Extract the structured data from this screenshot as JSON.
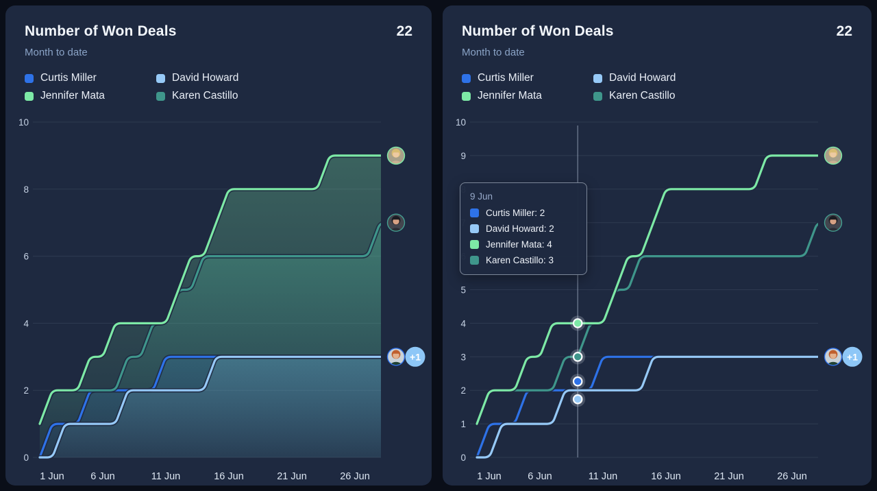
{
  "page": {
    "background": "#0a0e18"
  },
  "cards": [
    {
      "title": "Number of Won Deals",
      "value": "22",
      "subtitle": "Month to date"
    },
    {
      "title": "Number of Won Deals",
      "value": "22",
      "subtitle": "Month to date"
    }
  ],
  "chart_data": [
    {
      "type": "area",
      "title": "Number of Won Deals",
      "subtitle": "Month to date",
      "total": 22,
      "x_ticks": [
        "1 Jun",
        "6 Jun",
        "11 Jun",
        "16 Jun",
        "21 Jun",
        "26 Jun"
      ],
      "x_range_days": [
        1,
        30
      ],
      "ylim": [
        0,
        10
      ],
      "y_tick_step": 2,
      "grid": true,
      "legend_position": "top",
      "series": [
        {
          "name": "Curtis Miller",
          "color": "#2e72e8",
          "fill_opacity_top": 0.2,
          "values": [
            0,
            1,
            1,
            1,
            2,
            2,
            2,
            2,
            2,
            2,
            3,
            3,
            3,
            3,
            3,
            3,
            3,
            3,
            3,
            3,
            3,
            3,
            3,
            3,
            3,
            3,
            3,
            3,
            3,
            3
          ]
        },
        {
          "name": "David Howard",
          "color": "#96c9f7",
          "fill_opacity_top": 0.2,
          "values": [
            0,
            0,
            1,
            1,
            1,
            1,
            1,
            2,
            2,
            2,
            2,
            2,
            2,
            2,
            3,
            3,
            3,
            3,
            3,
            3,
            3,
            3,
            3,
            3,
            3,
            3,
            3,
            3,
            3,
            3
          ]
        },
        {
          "name": "Karen Castillo",
          "color": "#3f968b",
          "fill_opacity_top": 0.42,
          "values": [
            1,
            2,
            2,
            2,
            2,
            2,
            2,
            3,
            3,
            4,
            4,
            5,
            5,
            6,
            6,
            6,
            6,
            6,
            6,
            6,
            6,
            6,
            6,
            6,
            6,
            6,
            6,
            7,
            7,
            7
          ]
        },
        {
          "name": "Jennifer Mata",
          "color": "#7de9a6",
          "fill_opacity_top": 0.3,
          "values": [
            1,
            2,
            2,
            2,
            3,
            3,
            4,
            4,
            4,
            4,
            4,
            5,
            6,
            6,
            7,
            8,
            8,
            8,
            8,
            8,
            8,
            8,
            8,
            9,
            9,
            9,
            9,
            9,
            9,
            9
          ]
        }
      ],
      "end_avatars": [
        {
          "name": "Jennifer Mata",
          "ring": "#7de9a6",
          "value": 9
        },
        {
          "name": "Karen Castillo",
          "ring": "#44a092",
          "value": 7
        },
        {
          "name": "Curtis Miller",
          "ring": "#2e6fe8",
          "value": 3,
          "badge": "+1"
        }
      ]
    },
    {
      "type": "line",
      "title": "Number of Won Deals",
      "subtitle": "Month to date",
      "total": 22,
      "x_ticks": [
        "1 Jun",
        "6 Jun",
        "11 Jun",
        "16 Jun",
        "21 Jun",
        "26 Jun"
      ],
      "x_range_days": [
        1,
        30
      ],
      "ylim": [
        0,
        10
      ],
      "y_tick_step": 1,
      "grid": true,
      "legend_position": "top",
      "series": [
        {
          "name": "Curtis Miller",
          "color": "#2e72e8",
          "values": [
            0,
            1,
            1,
            1,
            2,
            2,
            2,
            2,
            2,
            2,
            3,
            3,
            3,
            3,
            3,
            3,
            3,
            3,
            3,
            3,
            3,
            3,
            3,
            3,
            3,
            3,
            3,
            3,
            3,
            3
          ]
        },
        {
          "name": "David Howard",
          "color": "#96c9f7",
          "values": [
            0,
            0,
            1,
            1,
            1,
            1,
            1,
            2,
            2,
            2,
            2,
            2,
            2,
            2,
            3,
            3,
            3,
            3,
            3,
            3,
            3,
            3,
            3,
            3,
            3,
            3,
            3,
            3,
            3,
            3
          ]
        },
        {
          "name": "Karen Castillo",
          "color": "#3f968b",
          "values": [
            1,
            2,
            2,
            2,
            2,
            2,
            2,
            3,
            3,
            4,
            4,
            5,
            5,
            6,
            6,
            6,
            6,
            6,
            6,
            6,
            6,
            6,
            6,
            6,
            6,
            6,
            6,
            7,
            7,
            7
          ]
        },
        {
          "name": "Jennifer Mata",
          "color": "#7de9a6",
          "values": [
            1,
            2,
            2,
            2,
            3,
            3,
            4,
            4,
            4,
            4,
            4,
            5,
            6,
            6,
            7,
            8,
            8,
            8,
            8,
            8,
            8,
            8,
            8,
            9,
            9,
            9,
            9,
            9,
            9,
            9
          ]
        }
      ],
      "crosshair": {
        "day": 9,
        "label": "9 Jun",
        "items": [
          {
            "name": "Curtis Miller",
            "value": 2,
            "color": "#2e72e8"
          },
          {
            "name": "David Howard",
            "value": 2,
            "color": "#96c9f7"
          },
          {
            "name": "Jennifer Mata",
            "value": 4,
            "color": "#7de9a6"
          },
          {
            "name": "Karen Castillo",
            "value": 3,
            "color": "#3f968b"
          }
        ]
      },
      "end_avatars": [
        {
          "name": "Jennifer Mata",
          "ring": "#7de9a6",
          "value": 9
        },
        {
          "name": "Karen Castillo",
          "ring": "#44a092",
          "value": 7
        },
        {
          "name": "Curtis Miller",
          "ring": "#2e6fe8",
          "value": 3,
          "badge": "+1"
        }
      ]
    }
  ]
}
